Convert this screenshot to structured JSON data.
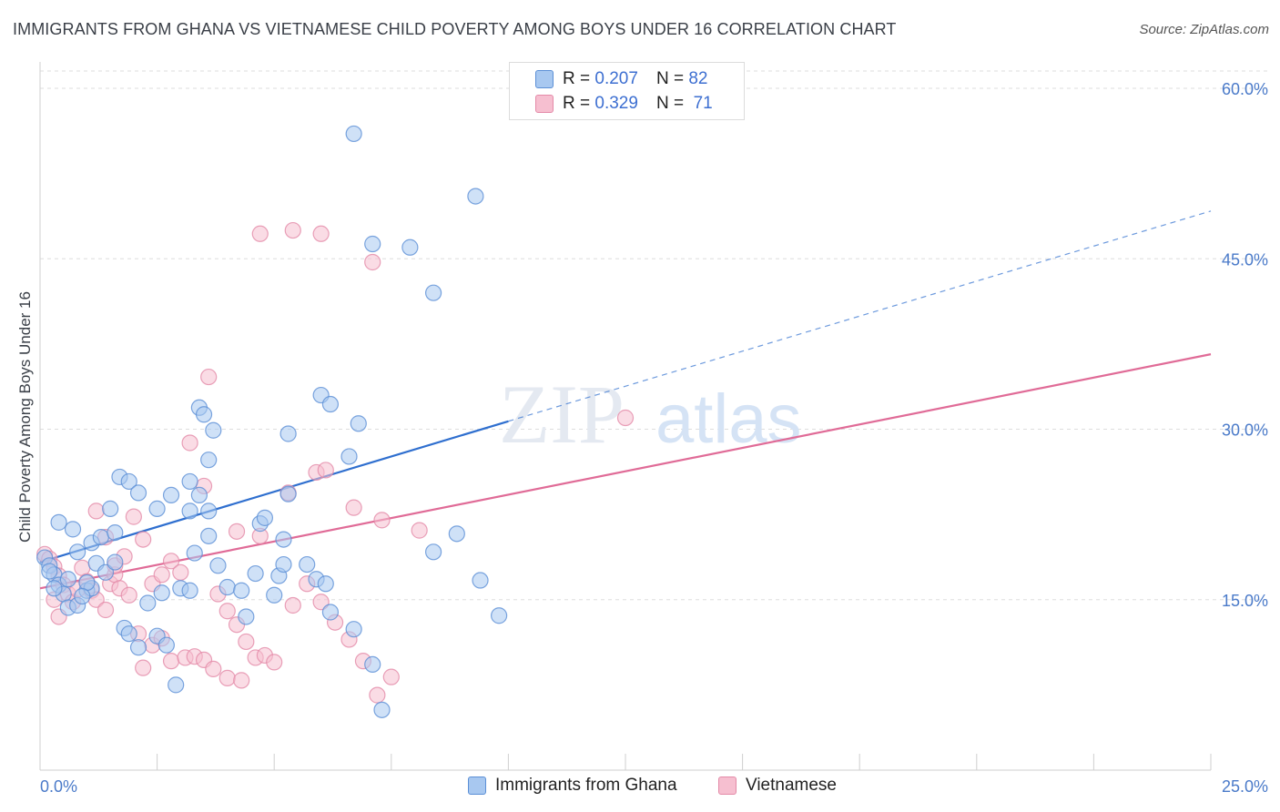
{
  "header": {
    "title": "IMMIGRANTS FROM GHANA VS VIETNAMESE CHILD POVERTY AMONG BOYS UNDER 16 CORRELATION CHART",
    "source": "Source: ZipAtlas.com"
  },
  "watermark": {
    "zip": "ZIP",
    "atlas": "atlas"
  },
  "legend": {
    "rows": [
      {
        "r_label": "R =",
        "r_value": "0.207",
        "n_label": "N =",
        "n_value": "82"
      },
      {
        "r_label": "R =",
        "r_value": "0.329",
        "n_label": "N =",
        "n_value": "71"
      }
    ]
  },
  "bottom_legend": {
    "items": [
      {
        "label": "Immigrants from Ghana"
      },
      {
        "label": "Vietnamese"
      }
    ]
  },
  "colors": {
    "ghana_fill": "#a8c8f0",
    "ghana_stroke": "#5b8fd6",
    "ghana_line": "#2f6fcf",
    "viet_fill": "#f6bfd0",
    "viet_stroke": "#e48aa8",
    "viet_line": "#e06b97",
    "grid": "#dedede",
    "tick_text": "#4a7ac9"
  },
  "chart_data": {
    "type": "scatter",
    "title": "IMMIGRANTS FROM GHANA VS VIETNAMESE CHILD POVERTY AMONG BOYS UNDER 16 CORRELATION CHART",
    "xlabel": "",
    "ylabel": "Child Poverty Among Boys Under 16",
    "xlim": [
      0,
      25
    ],
    "ylim": [
      0,
      60
    ],
    "x_tick_labels": [
      "0.0%",
      "25.0%"
    ],
    "y_ticks": [
      15,
      30,
      45,
      60
    ],
    "y_tick_labels": [
      "15.0%",
      "30.0%",
      "45.0%",
      "60.0%"
    ],
    "grid": true,
    "legend_position": "top-center",
    "series": [
      {
        "name": "Immigrants from Ghana",
        "R": 0.207,
        "N": 82,
        "trend": {
          "x0": 0,
          "y0": 18.3,
          "x1": 10,
          "y1": 30.7,
          "dashed_to_x": 25,
          "dashed_to_y": 49.2
        },
        "points": [
          [
            0.1,
            18.7
          ],
          [
            0.2,
            18.0
          ],
          [
            0.3,
            17.2
          ],
          [
            0.4,
            16.3
          ],
          [
            0.5,
            15.5
          ],
          [
            0.6,
            16.8
          ],
          [
            0.7,
            21.2
          ],
          [
            0.8,
            19.2
          ],
          [
            0.3,
            16.0
          ],
          [
            0.2,
            17.5
          ],
          [
            0.4,
            21.8
          ],
          [
            0.6,
            14.3
          ],
          [
            0.8,
            14.5
          ],
          [
            1.0,
            15.8
          ],
          [
            1.1,
            16.0
          ],
          [
            1.2,
            18.2
          ],
          [
            1.0,
            16.5
          ],
          [
            0.9,
            15.3
          ],
          [
            1.4,
            17.4
          ],
          [
            1.6,
            18.3
          ],
          [
            1.1,
            20.0
          ],
          [
            1.3,
            20.5
          ],
          [
            1.5,
            23.0
          ],
          [
            1.7,
            25.8
          ],
          [
            1.9,
            25.4
          ],
          [
            2.1,
            24.4
          ],
          [
            1.6,
            20.9
          ],
          [
            1.8,
            12.5
          ],
          [
            1.9,
            12.0
          ],
          [
            2.1,
            10.8
          ],
          [
            2.3,
            14.7
          ],
          [
            2.5,
            11.8
          ],
          [
            2.7,
            11.0
          ],
          [
            2.9,
            7.5
          ],
          [
            2.6,
            15.6
          ],
          [
            3.0,
            16.0
          ],
          [
            3.2,
            15.8
          ],
          [
            2.8,
            24.2
          ],
          [
            2.5,
            23.0
          ],
          [
            3.2,
            22.8
          ],
          [
            3.6,
            20.6
          ],
          [
            3.8,
            18.0
          ],
          [
            4.0,
            16.1
          ],
          [
            3.6,
            27.3
          ],
          [
            3.7,
            29.9
          ],
          [
            3.4,
            31.9
          ],
          [
            3.5,
            31.3
          ],
          [
            3.2,
            25.4
          ],
          [
            3.6,
            22.8
          ],
          [
            3.3,
            19.1
          ],
          [
            4.3,
            15.8
          ],
          [
            4.4,
            13.5
          ],
          [
            4.6,
            17.3
          ],
          [
            5.0,
            15.4
          ],
          [
            5.1,
            17.1
          ],
          [
            5.2,
            18.1
          ],
          [
            4.7,
            21.7
          ],
          [
            5.2,
            20.3
          ],
          [
            5.7,
            18.1
          ],
          [
            5.9,
            16.8
          ],
          [
            6.1,
            16.4
          ],
          [
            4.8,
            22.2
          ],
          [
            5.3,
            29.6
          ],
          [
            5.3,
            24.3
          ],
          [
            6.0,
            33.0
          ],
          [
            6.2,
            32.2
          ],
          [
            6.6,
            27.6
          ],
          [
            6.8,
            30.5
          ],
          [
            6.2,
            13.9
          ],
          [
            6.7,
            12.4
          ],
          [
            7.1,
            9.3
          ],
          [
            7.3,
            5.3
          ],
          [
            8.4,
            19.2
          ],
          [
            8.9,
            20.8
          ],
          [
            9.4,
            16.7
          ],
          [
            9.8,
            13.6
          ],
          [
            7.1,
            46.3
          ],
          [
            6.7,
            56.0
          ],
          [
            7.9,
            46.0
          ],
          [
            8.4,
            42.0
          ],
          [
            9.3,
            50.5
          ],
          [
            3.4,
            24.2
          ]
        ]
      },
      {
        "name": "Vietnamese",
        "R": 0.329,
        "N": 71,
        "trend": {
          "x0": 0,
          "y0": 16.0,
          "x1": 25,
          "y1": 36.6
        },
        "points": [
          [
            0.1,
            19.0
          ],
          [
            0.2,
            18.6
          ],
          [
            0.3,
            17.9
          ],
          [
            0.4,
            17.1
          ],
          [
            0.5,
            16.3
          ],
          [
            0.6,
            15.5
          ],
          [
            0.7,
            14.8
          ],
          [
            0.8,
            15.9
          ],
          [
            0.3,
            15.0
          ],
          [
            0.4,
            13.5
          ],
          [
            0.9,
            17.8
          ],
          [
            1.0,
            16.6
          ],
          [
            1.1,
            15.8
          ],
          [
            1.2,
            15.0
          ],
          [
            1.4,
            14.1
          ],
          [
            1.5,
            16.4
          ],
          [
            1.6,
            17.2
          ],
          [
            1.7,
            16.0
          ],
          [
            1.9,
            15.4
          ],
          [
            2.1,
            12.0
          ],
          [
            1.2,
            22.8
          ],
          [
            1.4,
            20.5
          ],
          [
            1.6,
            18.0
          ],
          [
            1.8,
            18.8
          ],
          [
            2.0,
            22.3
          ],
          [
            2.2,
            20.3
          ],
          [
            2.4,
            16.4
          ],
          [
            2.6,
            17.2
          ],
          [
            2.8,
            18.4
          ],
          [
            3.0,
            17.4
          ],
          [
            2.2,
            9.0
          ],
          [
            2.4,
            11.0
          ],
          [
            2.6,
            11.6
          ],
          [
            2.8,
            9.6
          ],
          [
            3.1,
            9.9
          ],
          [
            3.3,
            10.0
          ],
          [
            3.5,
            9.7
          ],
          [
            3.8,
            15.5
          ],
          [
            4.0,
            14.0
          ],
          [
            4.2,
            12.8
          ],
          [
            4.4,
            11.3
          ],
          [
            4.6,
            9.9
          ],
          [
            4.8,
            10.1
          ],
          [
            5.0,
            9.5
          ],
          [
            3.7,
            8.9
          ],
          [
            4.0,
            8.1
          ],
          [
            4.3,
            7.9
          ],
          [
            5.4,
            14.5
          ],
          [
            5.7,
            16.4
          ],
          [
            6.0,
            14.8
          ],
          [
            6.3,
            13.0
          ],
          [
            6.6,
            11.5
          ],
          [
            6.9,
            9.6
          ],
          [
            7.2,
            6.6
          ],
          [
            7.5,
            8.2
          ],
          [
            3.2,
            28.8
          ],
          [
            3.5,
            25.0
          ],
          [
            4.2,
            21.0
          ],
          [
            4.7,
            20.6
          ],
          [
            5.3,
            24.4
          ],
          [
            5.9,
            26.2
          ],
          [
            6.1,
            26.4
          ],
          [
            6.7,
            23.1
          ],
          [
            7.3,
            22.0
          ],
          [
            8.1,
            21.1
          ],
          [
            3.6,
            34.6
          ],
          [
            4.7,
            47.2
          ],
          [
            5.4,
            47.5
          ],
          [
            6.0,
            47.2
          ],
          [
            7.1,
            44.7
          ],
          [
            12.5,
            31.0
          ]
        ]
      }
    ]
  }
}
